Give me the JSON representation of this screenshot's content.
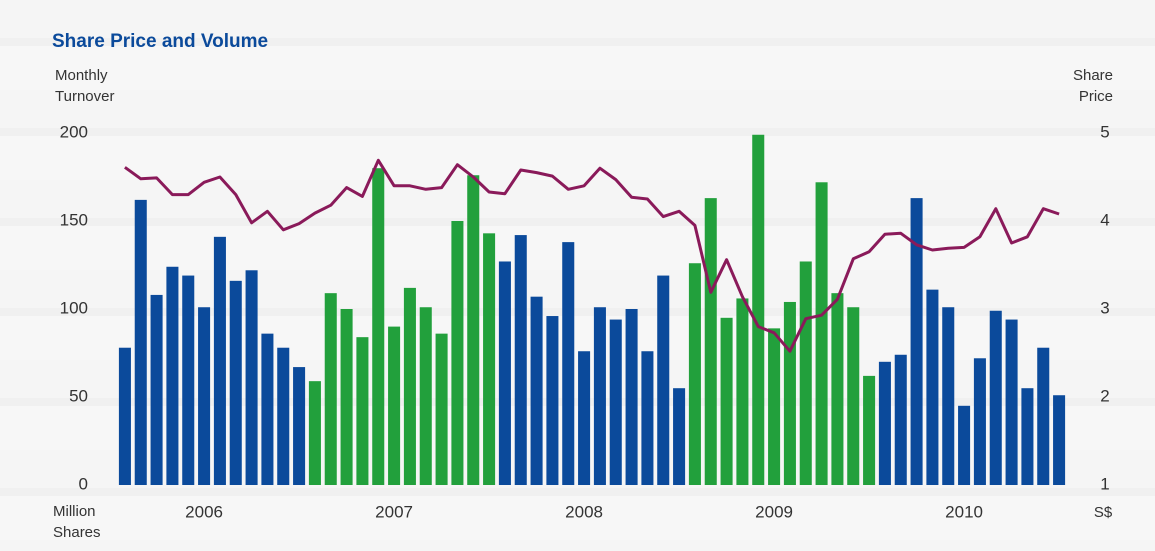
{
  "chart_data": {
    "type": "bar-line",
    "title": "Share Price and Volume",
    "y_label": [
      "Monthly",
      "Turnover"
    ],
    "y2_label": [
      "Share",
      "Price"
    ],
    "y_unit": [
      "Million",
      "Shares"
    ],
    "y2_unit": "S$",
    "categories": [
      null,
      null,
      null,
      null,
      null,
      "2006",
      null,
      null,
      null,
      null,
      null,
      null,
      null,
      null,
      null,
      null,
      null,
      "2007",
      null,
      null,
      null,
      null,
      null,
      null,
      null,
      null,
      null,
      null,
      null,
      "2008",
      null,
      null,
      null,
      null,
      null,
      null,
      null,
      null,
      null,
      null,
      null,
      "2009",
      null,
      null,
      null,
      null,
      null,
      null,
      null,
      null,
      null,
      null,
      null,
      "2010",
      null,
      null,
      null,
      null,
      null,
      null
    ],
    "series": [
      {
        "type": "bar",
        "colors": [
          "#0b4a9b",
          "#0b4a9b",
          "#0b4a9b",
          "#0b4a9b",
          "#0b4a9b",
          "#0b4a9b",
          "#0b4a9b",
          "#0b4a9b",
          "#0b4a9b",
          "#0b4a9b",
          "#0b4a9b",
          "#0b4a9b",
          "#22a03c",
          "#22a03c",
          "#22a03c",
          "#22a03c",
          "#22a03c",
          "#22a03c",
          "#22a03c",
          "#22a03c",
          "#22a03c",
          "#22a03c",
          "#22a03c",
          "#22a03c",
          "#0b4a9b",
          "#0b4a9b",
          "#0b4a9b",
          "#0b4a9b",
          "#0b4a9b",
          "#0b4a9b",
          "#0b4a9b",
          "#0b4a9b",
          "#0b4a9b",
          "#0b4a9b",
          "#0b4a9b",
          "#0b4a9b",
          "#22a03c",
          "#22a03c",
          "#22a03c",
          "#22a03c",
          "#22a03c",
          "#22a03c",
          "#22a03c",
          "#22a03c",
          "#22a03c",
          "#22a03c",
          "#22a03c",
          "#22a03c",
          "#0b4a9b",
          "#0b4a9b",
          "#0b4a9b",
          "#0b4a9b",
          "#0b4a9b",
          "#0b4a9b",
          "#0b4a9b",
          "#0b4a9b",
          "#0b4a9b",
          "#0b4a9b",
          "#0b4a9b",
          "#0b4a9b"
        ],
        "values": [
          78,
          162,
          108,
          124,
          119,
          101,
          141,
          116,
          122,
          86,
          78,
          67,
          59,
          109,
          100,
          84,
          180,
          90,
          112,
          101,
          86,
          150,
          176,
          143,
          127,
          142,
          107,
          96,
          138,
          76,
          101,
          94,
          100,
          76,
          119,
          55,
          126,
          163,
          95,
          106,
          199,
          89,
          104,
          127,
          172,
          109,
          101,
          62,
          70,
          74,
          163,
          111,
          101,
          45,
          72,
          99,
          94,
          55,
          78,
          51
        ]
      },
      {
        "type": "line",
        "axis": "y2",
        "color": "#8a1a5a",
        "values": [
          4.61,
          4.48,
          4.49,
          4.3,
          4.3,
          4.44,
          4.5,
          4.3,
          3.98,
          4.11,
          3.9,
          3.97,
          4.09,
          4.18,
          4.38,
          4.28,
          4.69,
          4.4,
          4.4,
          4.36,
          4.38,
          4.64,
          4.5,
          4.33,
          4.31,
          4.58,
          4.55,
          4.51,
          4.36,
          4.4,
          4.6,
          4.47,
          4.27,
          4.25,
          4.05,
          4.11,
          3.95,
          3.19,
          3.56,
          3.14,
          2.8,
          2.73,
          2.52,
          2.89,
          2.93,
          3.11,
          3.57,
          3.65,
          3.85,
          3.86,
          3.73,
          3.67,
          3.69,
          3.7,
          3.82,
          4.14,
          3.75,
          3.82,
          4.14,
          4.08
        ]
      }
    ],
    "ylim": [
      0,
      200
    ],
    "yticks": [
      0,
      50,
      100,
      150,
      200
    ],
    "y2lim": [
      1,
      5
    ],
    "y2ticks": [
      1,
      2,
      3,
      4,
      5
    ]
  }
}
